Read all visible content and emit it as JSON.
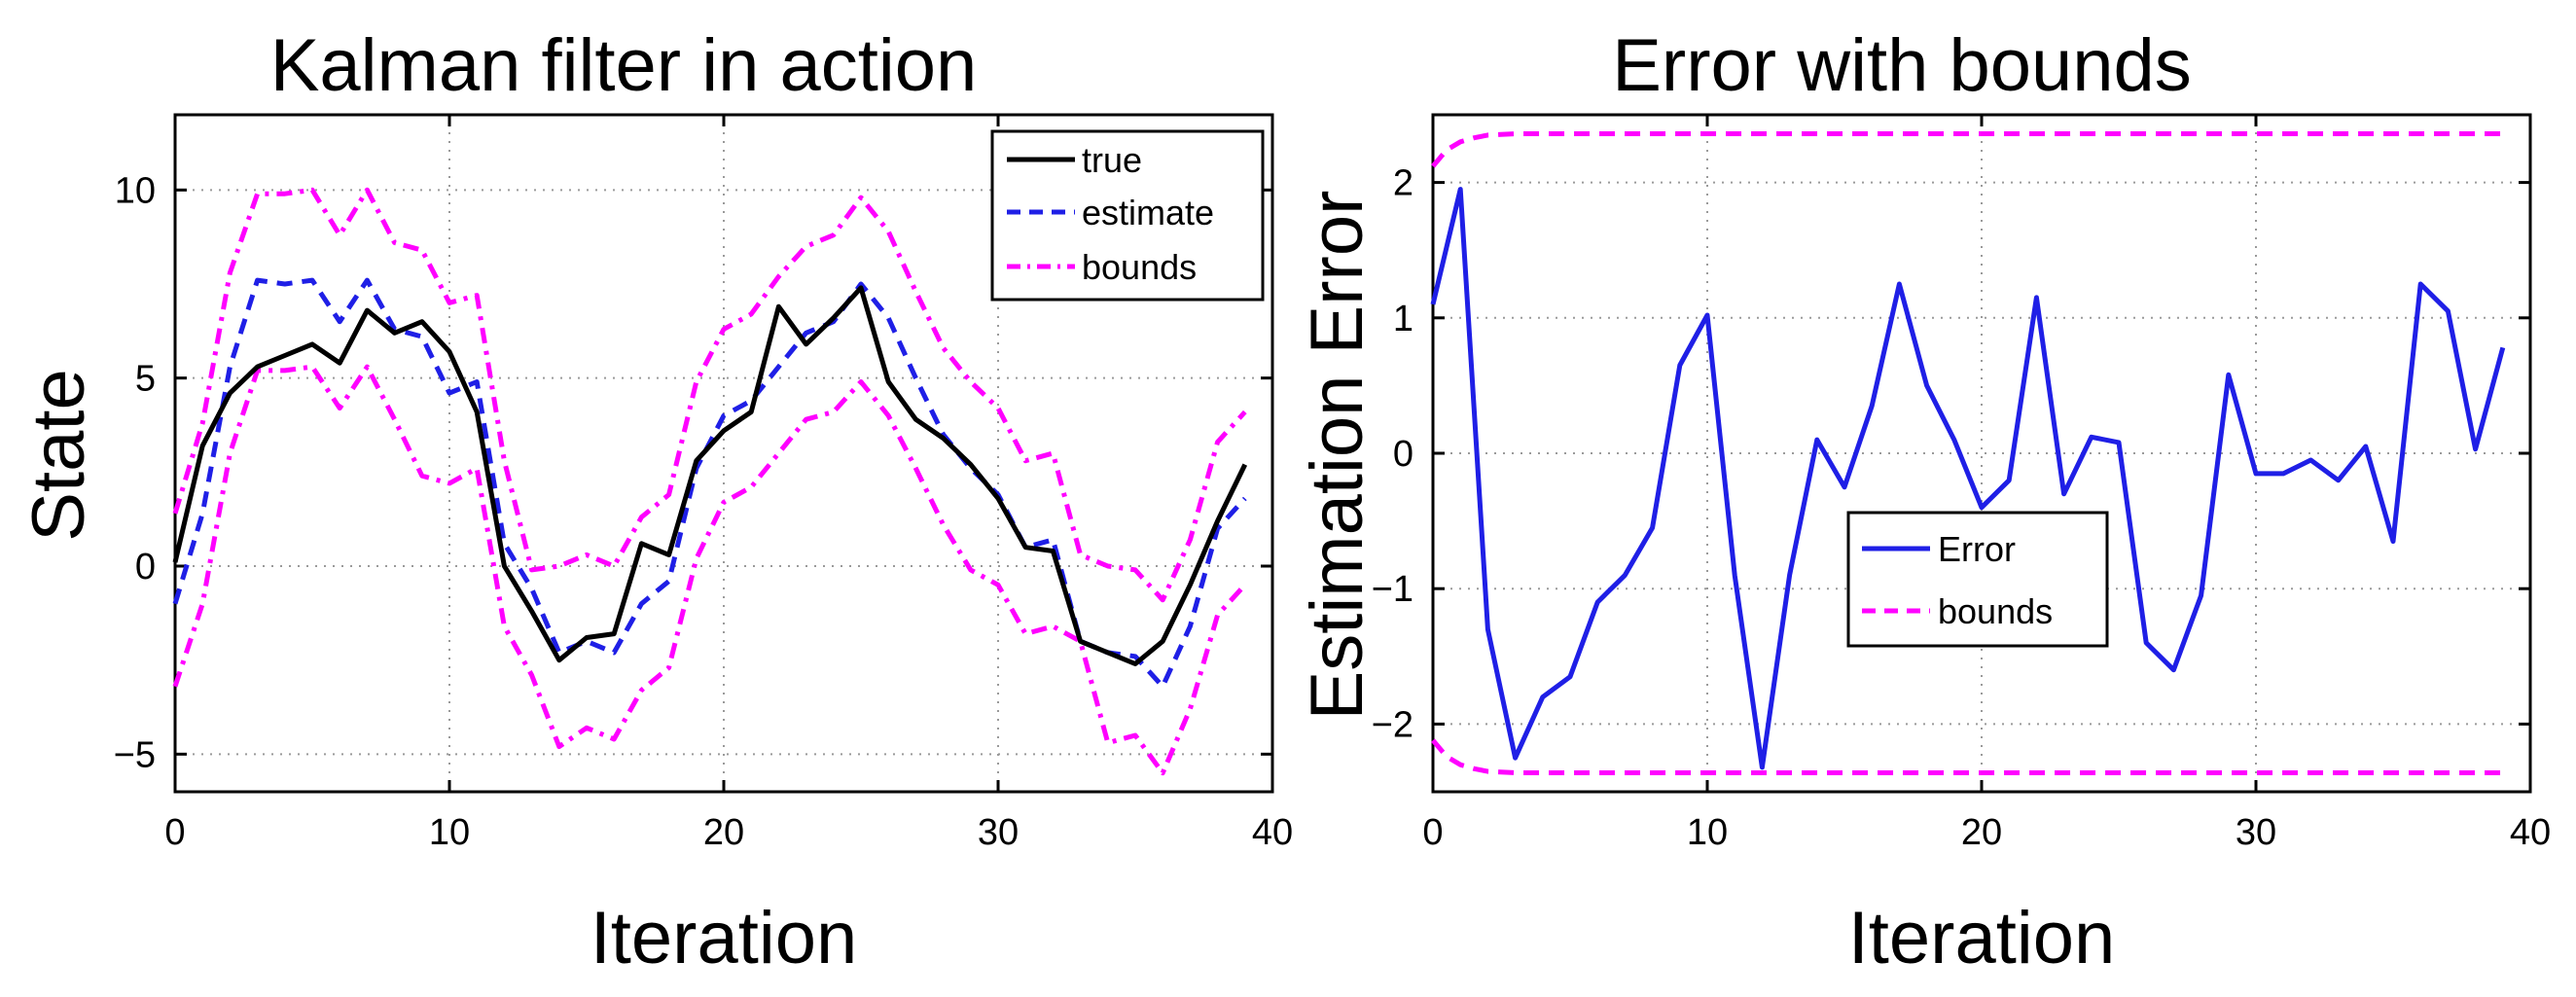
{
  "chart_data": [
    {
      "type": "line",
      "title": "Kalman filter in action",
      "xlabel": "Iteration",
      "ylabel": "State",
      "xlim": [
        0,
        40
      ],
      "ylim": [
        -6,
        12
      ],
      "xticks": [
        0,
        10,
        20,
        30,
        40
      ],
      "yticks": [
        -5,
        0,
        5,
        10
      ],
      "xtick_labels": [
        "0",
        "10",
        "20",
        "30",
        "40"
      ],
      "ytick_labels": [
        "−5",
        "0",
        "5",
        "10"
      ],
      "grid": true,
      "legend_position": "top-right",
      "series": [
        {
          "name": "true",
          "color": "#000000",
          "style": "solid",
          "x": [
            0,
            1,
            2,
            3,
            4,
            5,
            6,
            7,
            8,
            9,
            10,
            11,
            12,
            13,
            14,
            15,
            16,
            17,
            18,
            19,
            20,
            21,
            22,
            23,
            24,
            25,
            26,
            27,
            28,
            29,
            30,
            31,
            32,
            33,
            34,
            35,
            36,
            37,
            38,
            39
          ],
          "values": [
            0.1,
            3.2,
            4.6,
            5.3,
            5.6,
            5.9,
            5.4,
            6.8,
            6.2,
            6.5,
            5.7,
            4.1,
            0.0,
            -1.2,
            -2.5,
            -1.9,
            -1.8,
            0.6,
            0.3,
            2.8,
            3.6,
            4.1,
            6.9,
            5.9,
            6.6,
            7.4,
            4.9,
            3.9,
            3.4,
            2.7,
            1.8,
            0.5,
            0.4,
            -2.0,
            -2.3,
            -2.6,
            -2.0,
            -0.5,
            1.2,
            2.7
          ]
        },
        {
          "name": "estimate",
          "color": "#1f1fe6",
          "style": "dashed",
          "x": [
            0,
            1,
            2,
            3,
            4,
            5,
            6,
            7,
            8,
            9,
            10,
            11,
            12,
            13,
            14,
            15,
            16,
            17,
            18,
            19,
            20,
            21,
            22,
            23,
            24,
            25,
            26,
            27,
            28,
            29,
            30,
            31,
            32,
            33,
            34,
            35,
            36,
            37,
            38,
            39
          ],
          "values": [
            -1.0,
            1.4,
            5.3,
            7.6,
            7.5,
            7.6,
            6.5,
            7.6,
            6.3,
            6.1,
            4.6,
            4.9,
            0.6,
            -0.6,
            -2.3,
            -2.0,
            -2.3,
            -1.0,
            -0.4,
            2.6,
            4.0,
            4.4,
            5.3,
            6.2,
            6.5,
            7.5,
            6.6,
            5.0,
            3.5,
            2.6,
            1.9,
            0.5,
            0.7,
            -2.0,
            -2.3,
            -2.4,
            -3.2,
            -1.6,
            1.0,
            1.8
          ]
        },
        {
          "name": "bounds",
          "color": "#ff00ff",
          "style": "dashdot",
          "x": [
            0,
            1,
            2,
            3,
            4,
            5,
            6,
            7,
            8,
            9,
            10,
            11,
            12,
            13,
            14,
            15,
            16,
            17,
            18,
            19,
            20,
            21,
            22,
            23,
            24,
            25,
            26,
            27,
            28,
            29,
            30,
            31,
            32,
            33,
            34,
            35,
            36,
            37,
            38,
            39
          ],
          "values": [
            1.4,
            3.8,
            7.8,
            9.9,
            9.9,
            10.0,
            8.8,
            10.0,
            8.6,
            8.4,
            7.0,
            7.2,
            2.8,
            -0.1,
            0.0,
            0.3,
            0.0,
            1.3,
            1.9,
            4.9,
            6.3,
            6.7,
            7.7,
            8.5,
            8.8,
            9.8,
            8.9,
            7.3,
            5.8,
            4.9,
            4.2,
            2.8,
            3.0,
            0.3,
            0.0,
            -0.1,
            -0.9,
            0.7,
            3.3,
            4.1
          ]
        },
        {
          "name": "",
          "color": "#ff00ff",
          "style": "dashdot",
          "x": [
            0,
            1,
            2,
            3,
            4,
            5,
            6,
            7,
            8,
            9,
            10,
            11,
            12,
            13,
            14,
            15,
            16,
            17,
            18,
            19,
            20,
            21,
            22,
            23,
            24,
            25,
            26,
            27,
            28,
            29,
            30,
            31,
            32,
            33,
            34,
            35,
            36,
            37,
            38,
            39
          ],
          "values": [
            -3.2,
            -1.0,
            3.0,
            5.2,
            5.2,
            5.3,
            4.2,
            5.3,
            3.9,
            2.4,
            2.2,
            2.6,
            -1.6,
            -2.9,
            -4.8,
            -4.3,
            -4.6,
            -3.3,
            -2.7,
            0.2,
            1.7,
            2.1,
            3.0,
            3.9,
            4.1,
            4.9,
            4.0,
            2.6,
            1.1,
            -0.1,
            -0.5,
            -1.8,
            -1.6,
            -2.0,
            -4.7,
            -4.5,
            -5.5,
            -3.8,
            -1.3,
            -0.5
          ]
        }
      ]
    },
    {
      "type": "line",
      "title": "Error with bounds",
      "xlabel": "Iteration",
      "ylabel": "Estimation Error",
      "xlim": [
        0,
        40
      ],
      "ylim": [
        -2.5,
        2.5
      ],
      "xticks": [
        0,
        10,
        20,
        30,
        40
      ],
      "yticks": [
        -2,
        -1,
        0,
        1,
        2
      ],
      "xtick_labels": [
        "0",
        "10",
        "20",
        "30",
        "40"
      ],
      "ytick_labels": [
        "−2",
        "−1",
        "0",
        "1",
        "2"
      ],
      "grid": true,
      "legend_position": "center",
      "series": [
        {
          "name": "Error",
          "color": "#1f1fe6",
          "style": "solid",
          "x": [
            0,
            1,
            2,
            3,
            4,
            5,
            6,
            7,
            8,
            9,
            10,
            11,
            12,
            13,
            14,
            15,
            16,
            17,
            18,
            19,
            20,
            21,
            22,
            23,
            24,
            25,
            26,
            27,
            28,
            29,
            30,
            31,
            32,
            33,
            34,
            35,
            36,
            37,
            38,
            39
          ],
          "values": [
            1.1,
            1.95,
            -1.3,
            -2.25,
            -1.8,
            -1.65,
            -1.1,
            -0.9,
            -0.55,
            0.65,
            1.02,
            -0.9,
            -2.32,
            -0.9,
            0.1,
            -0.25,
            0.35,
            1.25,
            0.5,
            0.1,
            -0.4,
            -0.2,
            1.15,
            -0.3,
            0.12,
            0.08,
            -1.4,
            -1.6,
            -1.05,
            0.58,
            -0.15,
            -0.15,
            -0.05,
            -0.2,
            0.05,
            -0.65,
            1.25,
            1.05,
            0.03,
            0.78
          ]
        },
        {
          "name": "bounds",
          "color": "#ff00ff",
          "style": "dashed",
          "x": [
            0,
            0.5,
            1,
            1.5,
            2,
            3,
            39
          ],
          "values": [
            2.12,
            2.24,
            2.3,
            2.33,
            2.35,
            2.36,
            2.36
          ]
        },
        {
          "name": "",
          "color": "#ff00ff",
          "style": "dashed",
          "x": [
            0,
            0.5,
            1,
            1.5,
            2,
            3,
            39
          ],
          "values": [
            -2.12,
            -2.24,
            -2.3,
            -2.33,
            -2.35,
            -2.36,
            -2.36
          ]
        }
      ]
    }
  ]
}
